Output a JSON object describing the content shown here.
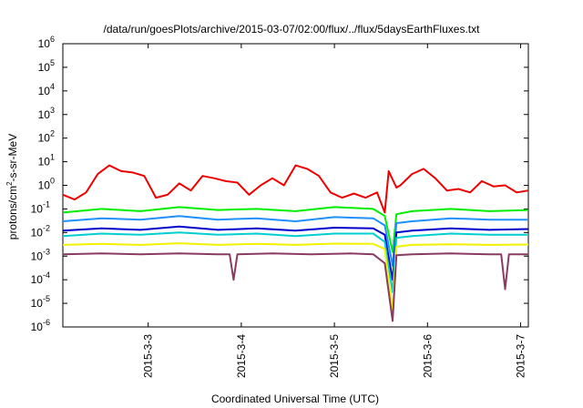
{
  "chart_data": {
    "type": "line",
    "title": "/data/run/goesPlots/archive/2015-03-07/02:00/flux/../flux/5daysEarthFluxes.txt",
    "xlabel": "Coordinated Universal Time (UTC)",
    "ylabel": "protons/cm2-s-sr-MeV",
    "ylabel_parts": {
      "base": "protons/cm",
      "sup": "2",
      "rest": "-s-sr-MeV"
    },
    "y_scale": "log",
    "ylim": [
      1e-06,
      1000000.0
    ],
    "y_ticks": [
      {
        "value": 1e-06,
        "base": "10",
        "exp": "-6"
      },
      {
        "value": 1e-05,
        "base": "10",
        "exp": "-5"
      },
      {
        "value": 0.0001,
        "base": "10",
        "exp": "-4"
      },
      {
        "value": 0.001,
        "base": "10",
        "exp": "-3"
      },
      {
        "value": 0.01,
        "base": "10",
        "exp": "-2"
      },
      {
        "value": 0.1,
        "base": "10",
        "exp": "-1"
      },
      {
        "value": 1,
        "base": "10",
        "exp": "0"
      },
      {
        "value": 10.0,
        "base": "10",
        "exp": "1"
      },
      {
        "value": 100.0,
        "base": "10",
        "exp": "2"
      },
      {
        "value": 1000.0,
        "base": "10",
        "exp": "3"
      },
      {
        "value": 10000.0,
        "base": "10",
        "exp": "4"
      },
      {
        "value": 100000.0,
        "base": "10",
        "exp": "5"
      },
      {
        "value": 1000000.0,
        "base": "10",
        "exp": "6"
      }
    ],
    "xlim": [
      "2015-03-02 02:00",
      "2015-03-07 02:00"
    ],
    "x_ticks": [
      {
        "value": "2015-03-03 00:00",
        "label": "2015-3-3"
      },
      {
        "value": "2015-03-04 00:00",
        "label": "2015-3-4"
      },
      {
        "value": "2015-03-05 00:00",
        "label": "2015-3-5"
      },
      {
        "value": "2015-03-06 00:00",
        "label": "2015-3-6"
      },
      {
        "value": "2015-03-07 00:00",
        "label": "2015-3-7"
      }
    ],
    "grid": false,
    "legend": "none",
    "series": [
      {
        "color": "#ee0000",
        "x": [
          "2015-03-02 02:00",
          "2015-03-02 05:00",
          "2015-03-02 08:00",
          "2015-03-02 11:00",
          "2015-03-02 14:00",
          "2015-03-02 17:00",
          "2015-03-02 20:00",
          "2015-03-02 23:00",
          "2015-03-03 02:00",
          "2015-03-03 05:00",
          "2015-03-03 08:00",
          "2015-03-03 11:00",
          "2015-03-03 14:00",
          "2015-03-03 17:00",
          "2015-03-03 20:00",
          "2015-03-03 23:00",
          "2015-03-04 02:00",
          "2015-03-04 05:00",
          "2015-03-04 08:00",
          "2015-03-04 11:00",
          "2015-03-04 14:00",
          "2015-03-04 17:00",
          "2015-03-04 20:00",
          "2015-03-04 23:00",
          "2015-03-05 02:00",
          "2015-03-05 05:00",
          "2015-03-05 08:00",
          "2015-03-05 11:00",
          "2015-03-05 13:00",
          "2015-03-05 14:00",
          "2015-03-05 16:00",
          "2015-03-05 17:00",
          "2015-03-05 20:00",
          "2015-03-05 23:00",
          "2015-03-06 02:00",
          "2015-03-06 05:00",
          "2015-03-06 08:00",
          "2015-03-06 11:00",
          "2015-03-06 14:00",
          "2015-03-06 17:00",
          "2015-03-06 20:00",
          "2015-03-06 23:00",
          "2015-03-07 02:00"
        ],
        "y": [
          0.4,
          0.25,
          0.5,
          3.0,
          7.0,
          4.0,
          3.5,
          2.5,
          0.3,
          0.4,
          1.2,
          0.6,
          2.5,
          2.0,
          1.5,
          1.3,
          0.4,
          1.0,
          2.0,
          1.0,
          7.0,
          5.0,
          2.5,
          0.5,
          0.3,
          0.45,
          0.3,
          0.5,
          0.07,
          4.0,
          0.8,
          1.0,
          3.0,
          5.0,
          2.0,
          0.6,
          0.7,
          0.5,
          1.5,
          0.9,
          1.0,
          0.5,
          0.6
        ]
      },
      {
        "color": "#00ee00",
        "x": [
          "2015-03-02 02:00",
          "2015-03-02 12:00",
          "2015-03-02 22:00",
          "2015-03-03 08:00",
          "2015-03-03 18:00",
          "2015-03-04 04:00",
          "2015-03-04 14:00",
          "2015-03-05 00:00",
          "2015-03-05 10:00",
          "2015-03-05 13:00",
          "2015-03-05 15:00",
          "2015-03-05 16:00",
          "2015-03-05 20:00",
          "2015-03-06 06:00",
          "2015-03-06 16:00",
          "2015-03-07 02:00"
        ],
        "y": [
          0.07,
          0.1,
          0.08,
          0.12,
          0.09,
          0.1,
          0.08,
          0.12,
          0.1,
          0.05,
          0.0015,
          0.06,
          0.08,
          0.1,
          0.08,
          0.09
        ]
      },
      {
        "color": "#1e90ff",
        "x": [
          "2015-03-02 02:00",
          "2015-03-02 12:00",
          "2015-03-02 22:00",
          "2015-03-03 08:00",
          "2015-03-03 18:00",
          "2015-03-04 04:00",
          "2015-03-04 14:00",
          "2015-03-05 00:00",
          "2015-03-05 10:00",
          "2015-03-05 13:00",
          "2015-03-05 15:00",
          "2015-03-05 16:00",
          "2015-03-05 20:00",
          "2015-03-06 06:00",
          "2015-03-06 16:00",
          "2015-03-07 02:00"
        ],
        "y": [
          0.03,
          0.04,
          0.035,
          0.05,
          0.035,
          0.04,
          0.03,
          0.045,
          0.04,
          0.02,
          0.0004,
          0.025,
          0.03,
          0.04,
          0.035,
          0.035
        ]
      },
      {
        "color": "#0000cd",
        "x": [
          "2015-03-02 02:00",
          "2015-03-02 12:00",
          "2015-03-02 22:00",
          "2015-03-03 08:00",
          "2015-03-03 18:00",
          "2015-03-04 04:00",
          "2015-03-04 14:00",
          "2015-03-05 00:00",
          "2015-03-05 10:00",
          "2015-03-05 13:00",
          "2015-03-05 15:00",
          "2015-03-05 16:00",
          "2015-03-05 20:00",
          "2015-03-06 06:00",
          "2015-03-06 16:00",
          "2015-03-07 02:00"
        ],
        "y": [
          0.012,
          0.015,
          0.013,
          0.018,
          0.013,
          0.015,
          0.012,
          0.016,
          0.015,
          0.008,
          0.0001,
          0.01,
          0.012,
          0.015,
          0.013,
          0.014
        ]
      },
      {
        "color": "#00ced1",
        "x": [
          "2015-03-02 02:00",
          "2015-03-02 12:00",
          "2015-03-02 22:00",
          "2015-03-03 08:00",
          "2015-03-03 18:00",
          "2015-03-04 04:00",
          "2015-03-04 14:00",
          "2015-03-05 00:00",
          "2015-03-05 10:00",
          "2015-03-05 13:00",
          "2015-03-05 15:00",
          "2015-03-05 16:00",
          "2015-03-05 20:00",
          "2015-03-06 06:00",
          "2015-03-06 16:00",
          "2015-03-07 02:00"
        ],
        "y": [
          0.007,
          0.009,
          0.008,
          0.01,
          0.008,
          0.009,
          0.007,
          0.009,
          0.009,
          0.004,
          3e-05,
          0.006,
          0.007,
          0.009,
          0.008,
          0.008
        ]
      },
      {
        "color": "#f2f200",
        "x": [
          "2015-03-02 02:00",
          "2015-03-02 12:00",
          "2015-03-02 22:00",
          "2015-03-03 08:00",
          "2015-03-03 18:00",
          "2015-03-04 04:00",
          "2015-03-04 14:00",
          "2015-03-05 00:00",
          "2015-03-05 10:00",
          "2015-03-05 13:00",
          "2015-03-05 15:00",
          "2015-03-05 16:00",
          "2015-03-05 20:00",
          "2015-03-06 06:00",
          "2015-03-06 16:00",
          "2015-03-07 02:00"
        ],
        "y": [
          0.003,
          0.0033,
          0.003,
          0.0035,
          0.003,
          0.0033,
          0.003,
          0.0034,
          0.0033,
          0.002,
          5e-06,
          0.0025,
          0.003,
          0.0032,
          0.003,
          0.0031
        ]
      },
      {
        "color": "#8b3a62",
        "x": [
          "2015-03-02 02:00",
          "2015-03-02 12:00",
          "2015-03-02 22:00",
          "2015-03-03 08:00",
          "2015-03-03 18:00",
          "2015-03-03 21:00",
          "2015-03-03 22:00",
          "2015-03-03 23:00",
          "2015-03-04 08:00",
          "2015-03-04 18:00",
          "2015-03-05 04:00",
          "2015-03-05 10:00",
          "2015-03-05 13:00",
          "2015-03-05 15:00",
          "2015-03-05 16:00",
          "2015-03-05 20:00",
          "2015-03-06 06:00",
          "2015-03-06 16:00",
          "2015-03-06 19:00",
          "2015-03-06 20:00",
          "2015-03-06 21:00",
          "2015-03-07 02:00"
        ],
        "y": [
          0.0012,
          0.0013,
          0.0012,
          0.0013,
          0.0012,
          0.0012,
          0.0001,
          0.0012,
          0.0013,
          0.0012,
          0.0013,
          0.0012,
          0.0005,
          1.8e-06,
          0.0011,
          0.0012,
          0.0013,
          0.0012,
          0.0012,
          4e-05,
          0.0012,
          0.0012
        ]
      }
    ]
  }
}
